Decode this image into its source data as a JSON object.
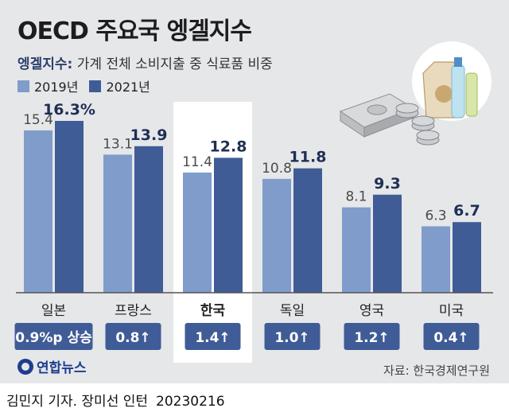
{
  "header": {
    "title": "OECD 주요국 엥겔지수",
    "subtitle_key": "엥겔지수:",
    "subtitle_text": "가계 전체 소비지출 중 식료품 비중"
  },
  "legend": [
    {
      "label": "2019년",
      "color": "#7f9ccb"
    },
    {
      "label": "2021년",
      "color": "#3f5c97"
    }
  ],
  "chart_data": {
    "type": "bar",
    "title": "OECD 주요국 엥겔지수",
    "categories": [
      "일본",
      "프랑스",
      "한국",
      "독일",
      "영국",
      "미국"
    ],
    "highlight_category": "한국",
    "series": [
      {
        "name": "2019년",
        "values": [
          15.4,
          13.1,
          11.4,
          10.8,
          8.1,
          6.3
        ],
        "labels": [
          "15.4",
          "13.1",
          "11.4",
          "10.8",
          "8.1",
          "6.3"
        ]
      },
      {
        "name": "2021년",
        "values": [
          16.3,
          13.9,
          12.8,
          11.8,
          9.3,
          6.7
        ],
        "labels": [
          "16.3%",
          "13.9",
          "12.8",
          "11.8",
          "9.3",
          "6.7"
        ]
      }
    ],
    "change_labels": [
      "0.9%p 상승",
      "0.8↑",
      "1.4↑",
      "1.0↑",
      "1.2↑",
      "0.4↑"
    ],
    "ylim": [
      0,
      16.3
    ]
  },
  "footer": {
    "logo": "연합뉴스",
    "source": "자료: 한국경제연구원",
    "credit": "김민지 기자. 장미선 인턴",
    "date": "20230216"
  },
  "colors": {
    "bar_2019": "#7f9ccb",
    "bar_2021": "#3f5c97",
    "badge": "#3f5c97",
    "highlight_bg": "#ffffff",
    "panel_bg": "#e6e7e9"
  }
}
